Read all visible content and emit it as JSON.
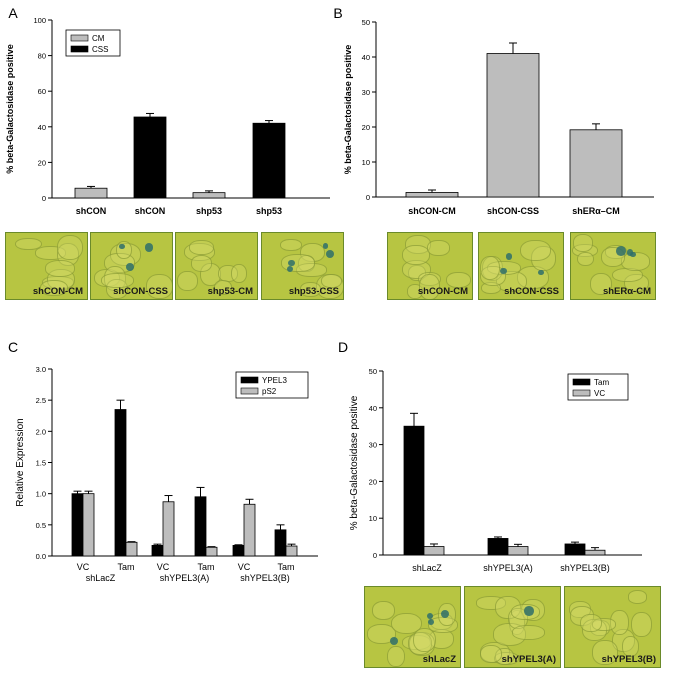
{
  "colors": {
    "black_bar": "#000000",
    "gray_bar": "#bdbdbd",
    "plate": "#b7c542",
    "stain": "#2f6e6a"
  },
  "panels": [
    {
      "letter": "A",
      "chart_data": {
        "type": "bar",
        "ylabel": "% beta-Galactosidase positive",
        "ylim": [
          0,
          100
        ],
        "yticks": [
          0,
          20,
          40,
          60,
          80,
          100
        ],
        "legend": {
          "position": "top-left",
          "entries": [
            {
              "name": "CM",
              "color": "#bdbdbd"
            },
            {
              "name": "CSS",
              "color": "#000000"
            }
          ]
        },
        "categories": [
          "shCON",
          "shCON",
          "shp53",
          "shp53"
        ],
        "values": [
          5.5,
          45.5,
          3,
          42
        ],
        "errors": [
          1,
          2,
          1,
          1.5
        ],
        "bar_colors": [
          "#bdbdbd",
          "#000000",
          "#bdbdbd",
          "#000000"
        ]
      },
      "images": [
        {
          "caption": "shCON-CM",
          "dots": 0
        },
        {
          "caption": "shCON-CSS",
          "dots": 3
        },
        {
          "caption": "shp53-CM",
          "dots": 0
        },
        {
          "caption": "shp53-CSS",
          "dots": 4
        }
      ]
    },
    {
      "letter": "B",
      "chart_data": {
        "type": "bar",
        "ylabel": "% beta-Galactosidase positive",
        "ylim": [
          0,
          50
        ],
        "yticks": [
          0,
          10,
          20,
          30,
          40,
          50
        ],
        "categories": [
          "shCON-CM",
          "shCON-CSS",
          "shERα–CM"
        ],
        "values": [
          1.3,
          41,
          19.2
        ],
        "errors": [
          0.7,
          3,
          1.7
        ],
        "bar_colors": [
          "#bdbdbd",
          "#bdbdbd",
          "#bdbdbd"
        ]
      },
      "images": [
        {
          "caption": "shCON-CM",
          "dots": 0
        },
        {
          "caption": "shCON-CSS",
          "dots": 3
        },
        {
          "caption": "shERα-CM",
          "dots": 3
        }
      ]
    },
    {
      "letter": "C",
      "chart_data": {
        "type": "bar",
        "ylabel": "Relative Expression",
        "ylim": [
          0,
          3.0
        ],
        "yticks": [
          "0.0",
          "0.5",
          "1.0",
          "1.5",
          "2.0",
          "2.5",
          "3.0"
        ],
        "legend": {
          "position": "top-right",
          "entries": [
            {
              "name": "YPEL3",
              "color": "#000000"
            },
            {
              "name": "pS2",
              "color": "#bdbdbd"
            }
          ]
        },
        "categories": [
          "VC",
          "Tam",
          "VC",
          "Tam",
          "VC",
          "Tam"
        ],
        "groups": [
          "shLacZ",
          "shYPEL3(A)",
          "shYPEL3(B)"
        ],
        "series": [
          {
            "name": "YPEL3",
            "values": [
              1.0,
              2.35,
              0.17,
              0.95,
              0.17,
              0.42
            ],
            "errors": [
              0.04,
              0.15,
              0.02,
              0.15,
              0.01,
              0.08
            ]
          },
          {
            "name": "pS2",
            "values": [
              1.0,
              0.22,
              0.87,
              0.14,
              0.83,
              0.16
            ],
            "errors": [
              0.04,
              0.01,
              0.1,
              0.01,
              0.08,
              0.03
            ]
          }
        ]
      }
    },
    {
      "letter": "D",
      "chart_data": {
        "type": "bar",
        "ylabel": "% beta-Galactosidase positive",
        "ylim": [
          0,
          50
        ],
        "yticks": [
          0,
          10,
          20,
          30,
          40,
          50
        ],
        "legend": {
          "position": "top-right",
          "entries": [
            {
              "name": "Tam",
              "color": "#000000"
            },
            {
              "name": "VC",
              "color": "#bdbdbd"
            }
          ]
        },
        "categories": [
          "shLacZ",
          "shYPEL3(A)",
          "shYPEL3(B)"
        ],
        "series": [
          {
            "name": "Tam",
            "values": [
              35,
              4.5,
              3
            ],
            "errors": [
              3.5,
              0.4,
              0.5
            ]
          },
          {
            "name": "VC",
            "values": [
              2.3,
              2.3,
              1.3
            ],
            "errors": [
              0.7,
              0.6,
              0.7
            ]
          }
        ]
      },
      "images": [
        {
          "caption": "shLacZ",
          "dots": 4
        },
        {
          "caption": "shYPEL3(A)",
          "dots": 1
        },
        {
          "caption": "shYPEL3(B)",
          "dots": 0
        }
      ]
    }
  ]
}
